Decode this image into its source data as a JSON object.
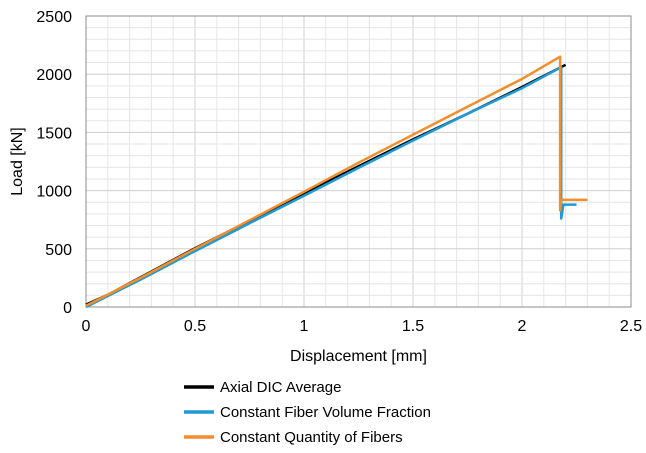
{
  "chart_data": {
    "type": "line",
    "title": "",
    "xlabel": "Displacement [mm]",
    "ylabel": "Load [kN]",
    "xlim": [
      0,
      2.5
    ],
    "ylim": [
      0,
      2500
    ],
    "x_ticks": [
      "0",
      "0.5",
      "1",
      "1.5",
      "2",
      "2.5"
    ],
    "y_ticks": [
      "0",
      "500",
      "1000",
      "1500",
      "2000",
      "2500"
    ],
    "x_tick_values": [
      0,
      0.5,
      1,
      1.5,
      2,
      2.5
    ],
    "y_tick_values": [
      0,
      500,
      1000,
      1500,
      2000,
      2500
    ],
    "grid": true,
    "minor_grid": true,
    "legend_position": "bottom",
    "series": [
      {
        "name": "Axial DIC Average",
        "color": "#000000",
        "points": [
          [
            0,
            20
          ],
          [
            0.1,
            105
          ],
          [
            0.25,
            255
          ],
          [
            0.5,
            505
          ],
          [
            0.75,
            740
          ],
          [
            1.0,
            975
          ],
          [
            1.25,
            1210
          ],
          [
            1.5,
            1440
          ],
          [
            1.75,
            1660
          ],
          [
            2.0,
            1890
          ],
          [
            2.2,
            2080
          ]
        ]
      },
      {
        "name": "Constant Fiber Volume Fraction",
        "color": "#1f9ad6",
        "points": [
          [
            0,
            0
          ],
          [
            0.25,
            235
          ],
          [
            0.5,
            480
          ],
          [
            0.75,
            720
          ],
          [
            1.0,
            955
          ],
          [
            1.25,
            1195
          ],
          [
            1.5,
            1430
          ],
          [
            1.75,
            1660
          ],
          [
            2.0,
            1880
          ],
          [
            2.18,
            2060
          ],
          [
            2.18,
            760
          ],
          [
            2.19,
            880
          ],
          [
            2.25,
            880
          ]
        ]
      },
      {
        "name": "Constant Quantity of Fibers",
        "color": "#f28e2c",
        "points": [
          [
            0,
            10
          ],
          [
            0.25,
            250
          ],
          [
            0.5,
            500
          ],
          [
            0.75,
            745
          ],
          [
            1.0,
            990
          ],
          [
            1.25,
            1240
          ],
          [
            1.5,
            1480
          ],
          [
            1.75,
            1720
          ],
          [
            2.0,
            1960
          ],
          [
            2.175,
            2150
          ],
          [
            2.175,
            830
          ],
          [
            2.18,
            920
          ],
          [
            2.3,
            920
          ]
        ]
      }
    ]
  }
}
